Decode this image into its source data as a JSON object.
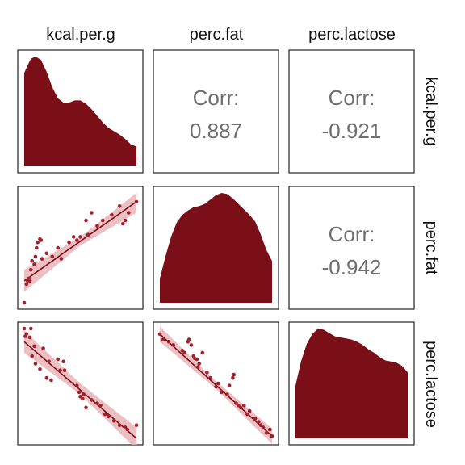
{
  "colors": {
    "fill": "#7a0f17",
    "point": "#a31f2b",
    "band": "#e9b5b8",
    "text": "#111111",
    "corr_text": "#6e6e6e",
    "frame": "#222222"
  },
  "chart_data": {
    "type": "scatter",
    "title": "",
    "variables": [
      "kcal.per.g",
      "perc.fat",
      "perc.lactose"
    ],
    "column_labels": [
      "kcal.per.g",
      "perc.fat",
      "perc.lactose"
    ],
    "row_labels": [
      "kcal.per.g",
      "perc.fat",
      "perc.lactose"
    ],
    "corr_label": "Corr:",
    "correlations": [
      {
        "row": 0,
        "col": 1,
        "value": "0.887"
      },
      {
        "row": 0,
        "col": 2,
        "value": "-0.921"
      },
      {
        "row": 1,
        "col": 2,
        "value": "-0.942"
      }
    ],
    "densities": [
      {
        "var": "kcal.per.g",
        "x": [
          0,
          0.03,
          0.06,
          0.1,
          0.15,
          0.2,
          0.25,
          0.3,
          0.35,
          0.4,
          0.45,
          0.5,
          0.55,
          0.6,
          0.65,
          0.7,
          0.75,
          0.8,
          0.85,
          0.9,
          0.95,
          1.0
        ],
        "y": [
          0.85,
          0.92,
          0.98,
          1.0,
          0.97,
          0.86,
          0.72,
          0.62,
          0.58,
          0.58,
          0.6,
          0.6,
          0.57,
          0.52,
          0.46,
          0.4,
          0.35,
          0.32,
          0.29,
          0.25,
          0.2,
          0.18
        ]
      },
      {
        "var": "perc.fat",
        "x": [
          0,
          0.05,
          0.1,
          0.15,
          0.2,
          0.25,
          0.3,
          0.35,
          0.4,
          0.45,
          0.5,
          0.55,
          0.6,
          0.65,
          0.7,
          0.75,
          0.8,
          0.85,
          0.9,
          0.95,
          1.0
        ],
        "y": [
          0.22,
          0.42,
          0.6,
          0.73,
          0.8,
          0.84,
          0.87,
          0.88,
          0.9,
          0.94,
          0.98,
          1.0,
          0.99,
          0.95,
          0.9,
          0.85,
          0.8,
          0.74,
          0.62,
          0.48,
          0.38
        ]
      },
      {
        "var": "perc.lactose",
        "x": [
          0,
          0.05,
          0.1,
          0.15,
          0.2,
          0.25,
          0.3,
          0.35,
          0.4,
          0.45,
          0.5,
          0.55,
          0.6,
          0.65,
          0.7,
          0.75,
          0.8,
          0.85,
          0.9,
          0.95,
          1.0
        ],
        "y": [
          0.48,
          0.7,
          0.86,
          0.95,
          1.0,
          0.99,
          0.96,
          0.93,
          0.92,
          0.91,
          0.9,
          0.88,
          0.85,
          0.81,
          0.78,
          0.74,
          0.71,
          0.7,
          0.69,
          0.66,
          0.6
        ]
      }
    ],
    "scatter_panels": [
      {
        "row": 1,
        "col": 0,
        "x_var": "kcal.per.g",
        "y_var": "perc.fat",
        "points": [
          [
            0.0,
            0.0
          ],
          [
            0.02,
            0.17
          ],
          [
            0.03,
            0.2
          ],
          [
            0.04,
            0.22
          ],
          [
            0.05,
            0.2
          ],
          [
            0.06,
            0.3
          ],
          [
            0.07,
            0.38
          ],
          [
            0.09,
            0.35
          ],
          [
            0.1,
            0.42
          ],
          [
            0.11,
            0.5
          ],
          [
            0.12,
            0.55
          ],
          [
            0.14,
            0.58
          ],
          [
            0.15,
            0.57
          ],
          [
            0.16,
            0.4
          ],
          [
            0.2,
            0.45
          ],
          [
            0.25,
            0.42
          ],
          [
            0.3,
            0.5
          ],
          [
            0.33,
            0.4
          ],
          [
            0.4,
            0.55
          ],
          [
            0.44,
            0.6
          ],
          [
            0.47,
            0.57
          ],
          [
            0.5,
            0.6
          ],
          [
            0.55,
            0.75
          ],
          [
            0.57,
            0.62
          ],
          [
            0.6,
            0.82
          ],
          [
            0.65,
            0.7
          ],
          [
            0.7,
            0.75
          ],
          [
            0.78,
            0.8
          ],
          [
            0.85,
            0.88
          ],
          [
            0.88,
            0.72
          ],
          [
            0.9,
            0.75
          ],
          [
            0.93,
            0.82
          ],
          [
            1.0,
            0.92
          ]
        ],
        "fit": [
          [
            0.0,
            0.2
          ],
          [
            1.0,
            0.92
          ]
        ],
        "band": [
          [
            0.0,
            0.1,
            0.3
          ],
          [
            0.5,
            0.52,
            0.6
          ],
          [
            1.0,
            0.82,
            1.0
          ]
        ]
      },
      {
        "row": 2,
        "col": 0,
        "x_var": "kcal.per.g",
        "y_var": "perc.lactose",
        "points": [
          [
            0.0,
            1.0
          ],
          [
            0.01,
            0.93
          ],
          [
            0.02,
            0.95
          ],
          [
            0.05,
            0.92
          ],
          [
            0.06,
            1.0
          ],
          [
            0.07,
            0.75
          ],
          [
            0.09,
            0.84
          ],
          [
            0.1,
            0.68
          ],
          [
            0.14,
            0.63
          ],
          [
            0.17,
            0.82
          ],
          [
            0.2,
            0.55
          ],
          [
            0.22,
            0.7
          ],
          [
            0.24,
            0.53
          ],
          [
            0.3,
            0.72
          ],
          [
            0.32,
            0.62
          ],
          [
            0.35,
            0.7
          ],
          [
            0.36,
            0.62
          ],
          [
            0.47,
            0.48
          ],
          [
            0.49,
            0.42
          ],
          [
            0.5,
            0.38
          ],
          [
            0.52,
            0.36
          ],
          [
            0.53,
            0.4
          ],
          [
            0.55,
            0.28
          ],
          [
            0.6,
            0.35
          ],
          [
            0.65,
            0.32
          ],
          [
            0.68,
            0.3
          ],
          [
            0.72,
            0.22
          ],
          [
            0.75,
            0.2
          ],
          [
            0.8,
            0.16
          ],
          [
            0.85,
            0.12
          ],
          [
            0.9,
            0.1
          ],
          [
            0.92,
            0.08
          ],
          [
            1.0,
            0.12
          ]
        ],
        "fit": [
          [
            0.0,
            0.88
          ],
          [
            1.0,
            0.0
          ]
        ],
        "band": [
          [
            0.0,
            0.78,
            0.98
          ],
          [
            0.5,
            0.4,
            0.5
          ],
          [
            1.0,
            -0.1,
            0.1
          ]
        ]
      },
      {
        "row": 2,
        "col": 1,
        "x_var": "perc.fat",
        "y_var": "perc.lactose",
        "points": [
          [
            0.0,
            0.95
          ],
          [
            0.03,
            0.9
          ],
          [
            0.08,
            0.88
          ],
          [
            0.12,
            0.85
          ],
          [
            0.2,
            0.8
          ],
          [
            0.22,
            0.78
          ],
          [
            0.25,
            0.88
          ],
          [
            0.26,
            0.9
          ],
          [
            0.28,
            0.85
          ],
          [
            0.3,
            0.75
          ],
          [
            0.31,
            0.73
          ],
          [
            0.33,
            0.72
          ],
          [
            0.34,
            0.65
          ],
          [
            0.35,
            0.68
          ],
          [
            0.38,
            0.78
          ],
          [
            0.42,
            0.6
          ],
          [
            0.45,
            0.55
          ],
          [
            0.5,
            0.47
          ],
          [
            0.52,
            0.5
          ],
          [
            0.55,
            0.42
          ],
          [
            0.6,
            0.4
          ],
          [
            0.62,
            0.48
          ],
          [
            0.65,
            0.55
          ],
          [
            0.66,
            0.58
          ],
          [
            0.68,
            0.32
          ],
          [
            0.7,
            0.3
          ],
          [
            0.72,
            0.28
          ],
          [
            0.75,
            0.3
          ],
          [
            0.78,
            0.22
          ],
          [
            0.8,
            0.25
          ],
          [
            0.85,
            0.18
          ],
          [
            0.88,
            0.15
          ],
          [
            0.9,
            0.12
          ],
          [
            0.92,
            0.1
          ],
          [
            0.95,
            0.05
          ],
          [
            0.98,
            0.08
          ],
          [
            1.0,
            0.02
          ]
        ],
        "fit": [
          [
            0.0,
            0.95
          ],
          [
            1.0,
            0.02
          ]
        ],
        "band": [
          [
            0.0,
            0.88,
            1.02
          ],
          [
            0.5,
            0.45,
            0.52
          ],
          [
            1.0,
            -0.05,
            0.09
          ]
        ]
      }
    ]
  }
}
